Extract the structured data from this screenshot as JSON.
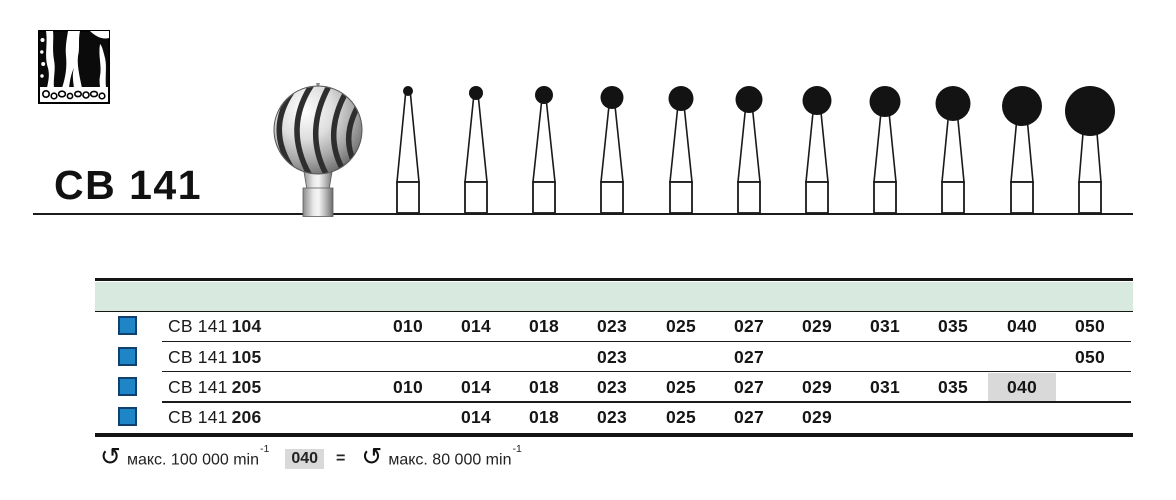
{
  "header": {
    "product_code": "CB 141"
  },
  "figure": {
    "sizes": [
      "010",
      "014",
      "018",
      "023",
      "025",
      "027",
      "029",
      "031",
      "035",
      "040",
      "050"
    ]
  },
  "table": {
    "columns": [
      "010",
      "014",
      "018",
      "023",
      "025",
      "027",
      "029",
      "031",
      "035",
      "040",
      "050"
    ],
    "rows": [
      {
        "series": "CB 141",
        "variant": "104",
        "available": [
          "010",
          "014",
          "018",
          "023",
          "025",
          "027",
          "029",
          "031",
          "035",
          "040",
          "050"
        ],
        "highlighted": []
      },
      {
        "series": "CB 141",
        "variant": "105",
        "available": [
          "023",
          "027",
          "050"
        ],
        "highlighted": []
      },
      {
        "series": "CB 141",
        "variant": "205",
        "available": [
          "010",
          "014",
          "018",
          "023",
          "025",
          "027",
          "029",
          "031",
          "035",
          "040"
        ],
        "highlighted": [
          "040"
        ]
      },
      {
        "series": "CB 141",
        "variant": "206",
        "available": [
          "014",
          "018",
          "023",
          "025",
          "027",
          "029"
        ],
        "highlighted": []
      }
    ],
    "header_bg": "#d8e9df",
    "swatch_color": "#1e86c6",
    "swatch_border": "#10406e",
    "highlight_color": "#d9d9d9"
  },
  "footnote": {
    "rotation_icon": "↺",
    "speed_text_1": "макс. 100 000 min",
    "exponent": "-1",
    "size_code": "040",
    "equals_sign": "=",
    "speed_text_2": "макс. 80 000 min"
  }
}
